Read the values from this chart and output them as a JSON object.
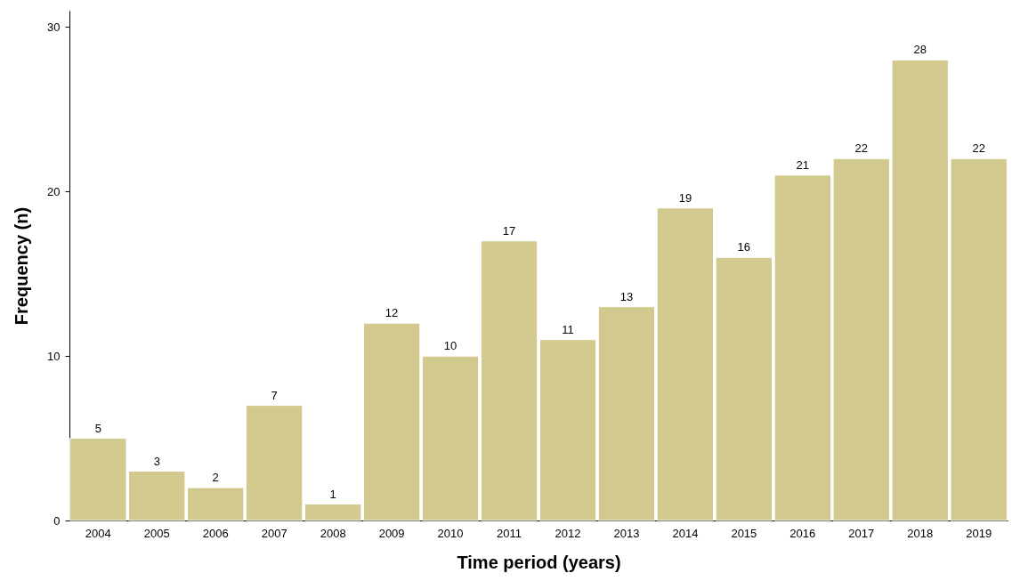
{
  "chart_data": {
    "type": "bar",
    "xlabel": "Time period (years)",
    "ylabel": "Frequency (n)",
    "categories": [
      "2004",
      "2005",
      "2006",
      "2007",
      "2008",
      "2009",
      "2010",
      "2011",
      "2012",
      "2013",
      "2014",
      "2015",
      "2016",
      "2017",
      "2018",
      "2019"
    ],
    "values": [
      5,
      3,
      2,
      7,
      1,
      12,
      10,
      17,
      11,
      13,
      19,
      16,
      21,
      22,
      28,
      22
    ],
    "color": "#d1c98e",
    "ylim": [
      0,
      31
    ],
    "yticks": [
      0,
      10,
      20,
      30
    ],
    "grid": false,
    "data_labels": true
  }
}
